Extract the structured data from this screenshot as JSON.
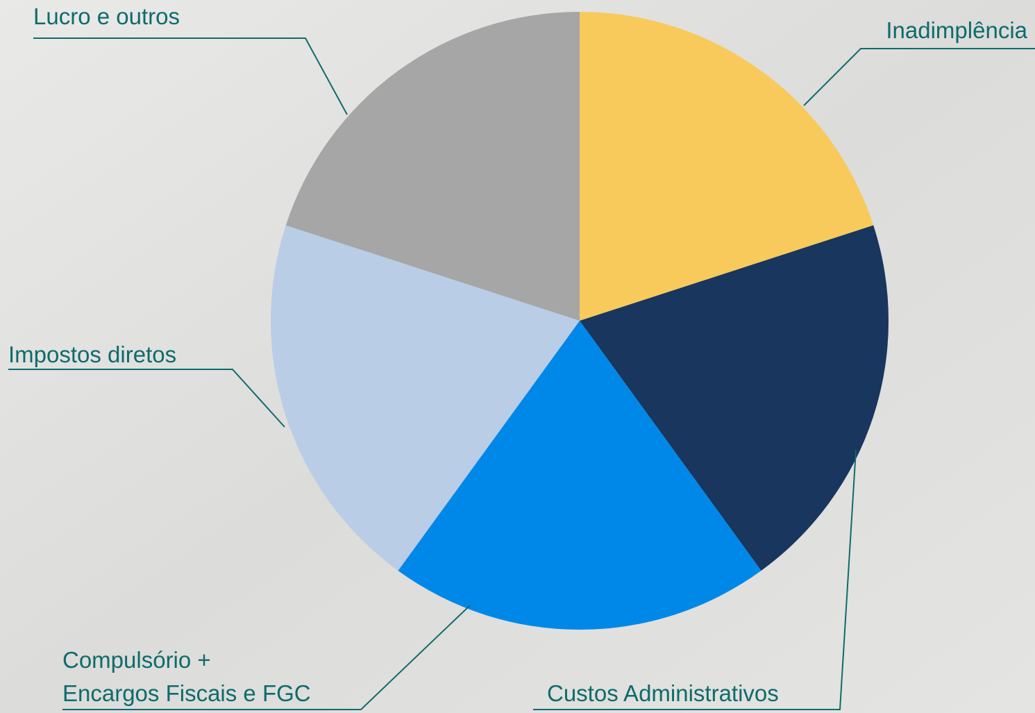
{
  "chart_data": {
    "type": "pie",
    "categories": [
      "Inadimplência",
      "Custos Administrativos",
      "Compulsório +\nEncargos Fiscais e FGC",
      "Impostos diretos",
      "Lucro e outros"
    ],
    "values": [
      20,
      20,
      20,
      20,
      20
    ],
    "colors": [
      "#F7CA5B",
      "#18365E",
      "#0088E8",
      "#B9CDE6",
      "#A6A6A6"
    ],
    "label_color": "#0E6B6B"
  }
}
